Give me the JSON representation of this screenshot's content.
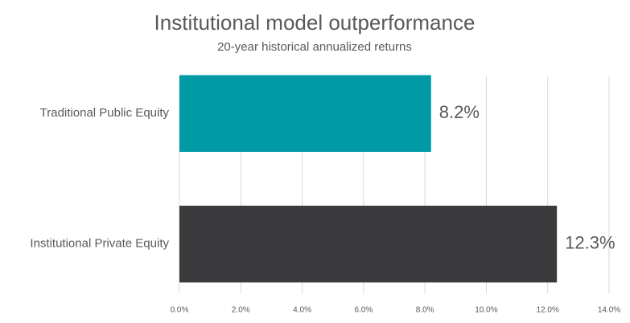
{
  "chart_data": {
    "type": "hbar",
    "title": "Institutional model outperformance",
    "subtitle": "20-year historical annualized returns",
    "categories": [
      "Traditional Public Equity",
      "Institutional Private Equity"
    ],
    "values": [
      8.2,
      12.3
    ],
    "value_labels": [
      "8.2%",
      "12.3%"
    ],
    "colors": [
      "#009aa6",
      "#3a3a3c"
    ],
    "xlim": [
      0,
      14
    ],
    "xticks": [
      {
        "value": 0,
        "label": "0.0%"
      },
      {
        "value": 2,
        "label": "2.0%"
      },
      {
        "value": 4,
        "label": "4.0%"
      },
      {
        "value": 6,
        "label": "6.0%"
      },
      {
        "value": 8,
        "label": "8.0%"
      },
      {
        "value": 10,
        "label": "10.0%"
      },
      {
        "value": 12,
        "label": "12.0%"
      },
      {
        "value": 14,
        "label": "14.0%"
      }
    ],
    "grid": true
  }
}
